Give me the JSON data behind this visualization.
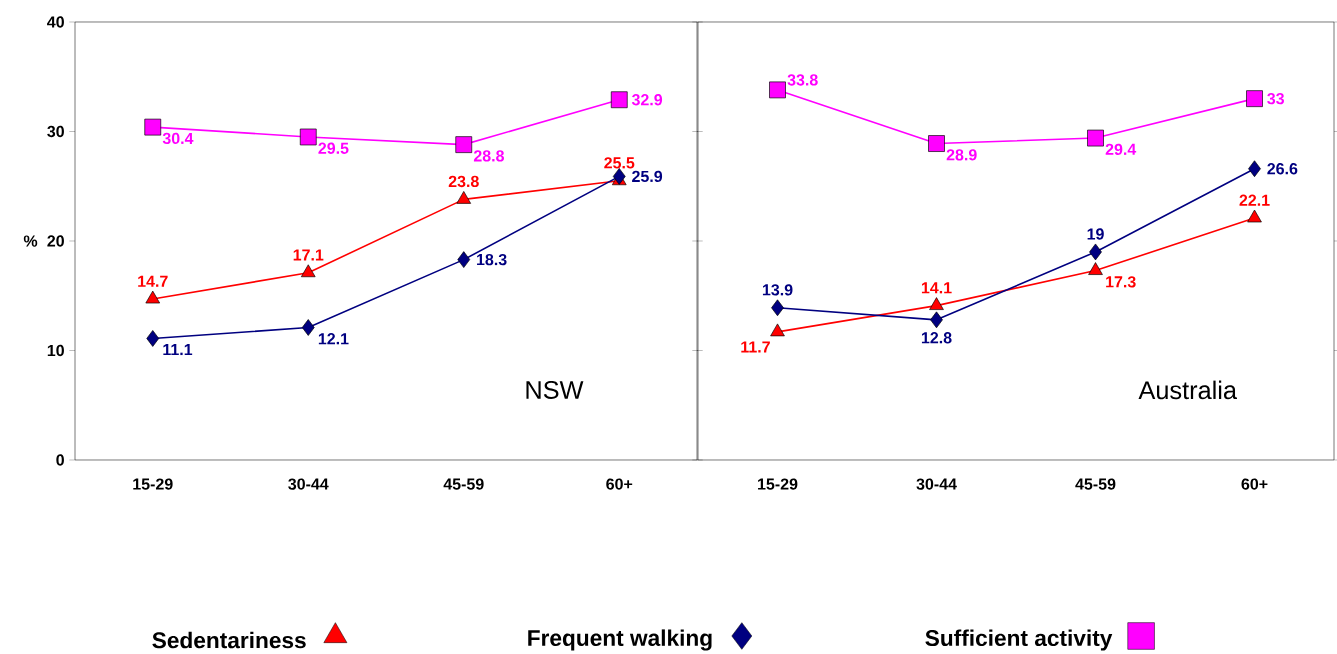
{
  "chart_data": [
    {
      "type": "line",
      "categories": [
        "15-29",
        "30-44",
        "45-59",
        "60+"
      ],
      "ylabel": "%",
      "ylim": [
        0,
        40
      ],
      "yticks": [
        0,
        10,
        20,
        30,
        40
      ],
      "data_labels": true,
      "legend": "bottom",
      "grid": false,
      "annotations": [
        "NSW"
      ],
      "series": [
        {
          "name": "Sedentariness",
          "color": "#ff0000",
          "marker": "triangle",
          "values": [
            14.7,
            17.1,
            23.8,
            25.5
          ]
        },
        {
          "name": "Frequent walking",
          "color": "#000080",
          "marker": "diamond",
          "values": [
            11.1,
            12.1,
            18.3,
            25.9
          ]
        },
        {
          "name": "Sufficient activity",
          "color": "#ff00ff",
          "marker": "square",
          "values": [
            30.4,
            29.5,
            28.8,
            32.9
          ]
        }
      ]
    },
    {
      "type": "line",
      "categories": [
        "15-29",
        "30-44",
        "45-59",
        "60+"
      ],
      "ylim": [
        0,
        40
      ],
      "yticks": [
        0,
        10,
        20,
        30,
        40
      ],
      "tick_labels": "x",
      "data_labels": true,
      "grid": false,
      "annotations": [
        "Australia"
      ],
      "series": [
        {
          "color": "#ff0000",
          "marker": "triangle",
          "values": [
            11.7,
            14.1,
            17.3,
            22.1
          ]
        },
        {
          "color": "#000080",
          "marker": "diamond",
          "values": [
            13.9,
            12.8,
            19,
            26.6
          ]
        },
        {
          "color": "#ff00ff",
          "marker": "square",
          "values": [
            33.8,
            28.9,
            29.4,
            33
          ]
        }
      ]
    }
  ]
}
